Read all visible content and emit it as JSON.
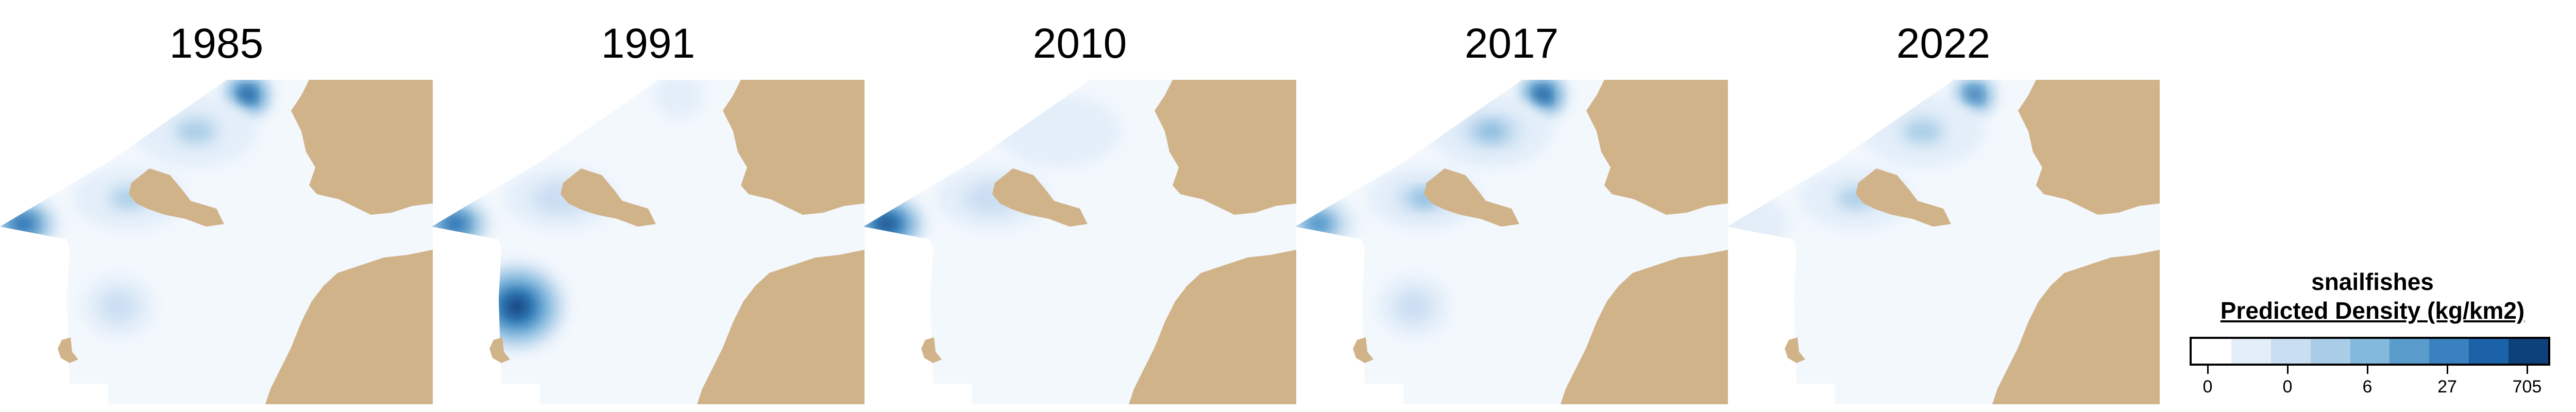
{
  "taxon": "snailfishes",
  "legend_title": "Predicted Density (kg/km2)",
  "legend_labels": [
    "0",
    "0",
    "6",
    "27",
    "705"
  ],
  "legend_colors": [
    "#ffffff",
    "#e3eef9",
    "#cadef2",
    "#a9cde6",
    "#82b9dc",
    "#5a9ccb",
    "#3982bf",
    "#1b62a8",
    "#0c417b"
  ],
  "land_color": "#d1b38a",
  "panels": [
    {
      "year": "1985",
      "hotspots": [
        {
          "label": "north bay",
          "level": 8
        },
        {
          "label": "northern shelf",
          "level": 3
        },
        {
          "label": "west edge",
          "level": 7
        },
        {
          "label": "island vicinity",
          "level": 3
        },
        {
          "label": "south basin",
          "level": 2
        }
      ]
    },
    {
      "year": "1991",
      "hotspots": [
        {
          "label": "west edge",
          "level": 7
        },
        {
          "label": "south-west pocket",
          "level": 8
        },
        {
          "label": "island vicinity",
          "level": 2
        },
        {
          "label": "north bay",
          "level": 1
        }
      ]
    },
    {
      "year": "2010",
      "hotspots": [
        {
          "label": "west edge",
          "level": 8
        },
        {
          "label": "island vicinity",
          "level": 2
        },
        {
          "label": "northern shelf",
          "level": 1
        }
      ]
    },
    {
      "year": "2017",
      "hotspots": [
        {
          "label": "north bay",
          "level": 8
        },
        {
          "label": "northern shelf",
          "level": 4
        },
        {
          "label": "west edge",
          "level": 6
        },
        {
          "label": "island vicinity",
          "level": 4
        },
        {
          "label": "south basin",
          "level": 2
        }
      ]
    },
    {
      "year": "2022",
      "hotspots": [
        {
          "label": "north bay",
          "level": 7
        },
        {
          "label": "northern shelf",
          "level": 3
        },
        {
          "label": "island vicinity",
          "level": 3
        },
        {
          "label": "west edge",
          "level": 1
        }
      ]
    }
  ]
}
